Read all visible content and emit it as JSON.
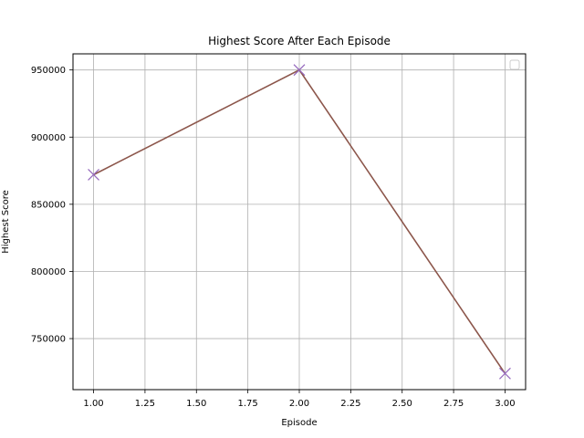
{
  "chart_data": {
    "type": "line",
    "title": "Highest Score After Each Episode",
    "xlabel": "Episode",
    "ylabel": "Highest Score",
    "xlim": [
      0.9,
      3.1
    ],
    "ylim": [
      712000,
      962000
    ],
    "x_ticks": [
      1.0,
      1.25,
      1.5,
      1.75,
      2.0,
      2.25,
      2.5,
      2.75,
      3.0
    ],
    "x_tick_labels": [
      "1.00",
      "1.25",
      "1.50",
      "1.75",
      "2.00",
      "2.25",
      "2.50",
      "2.75",
      "3.00"
    ],
    "y_ticks": [
      750000,
      800000,
      850000,
      900000,
      950000
    ],
    "y_tick_labels": [
      "750000",
      "800000",
      "850000",
      "900000",
      "950000"
    ],
    "grid": true,
    "legend": "top-right",
    "series": [
      {
        "x": [
          1,
          2,
          3
        ],
        "values": [
          872000,
          950000,
          724000
        ],
        "line_color": "#8c564b",
        "marker": "x",
        "marker_color": "#9467bd"
      }
    ]
  }
}
